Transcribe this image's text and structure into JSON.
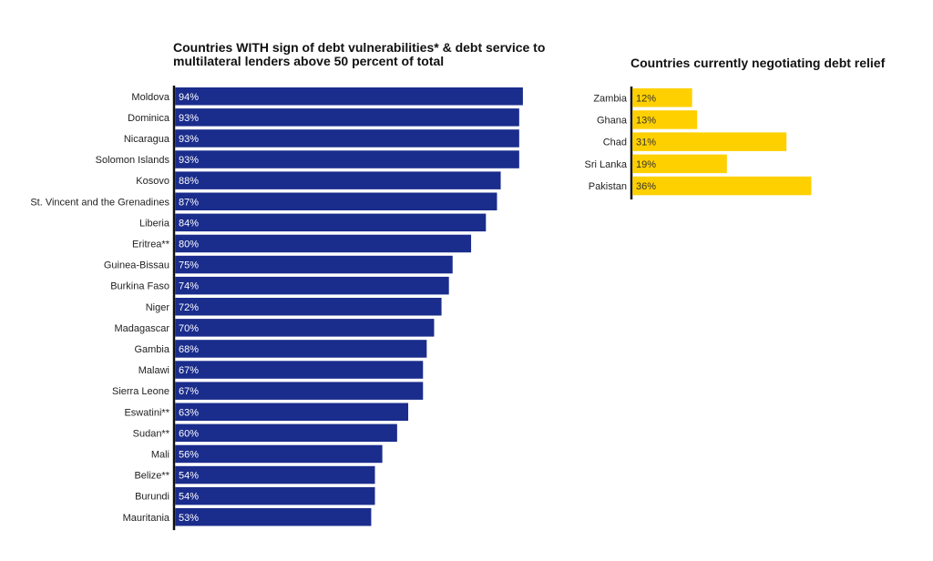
{
  "chart_data": [
    {
      "type": "bar",
      "orientation": "horizontal",
      "title": "Countries WITH sign of debt vulnerabilities* & debt service to multilateral lenders above 50 percent of total",
      "categories": [
        "Moldova",
        "Dominica",
        "Nicaragua",
        "Solomon Islands",
        "Kosovo",
        "St. Vincent and the Grenadines",
        "Liberia",
        "Eritrea**",
        "Guinea-Bissau",
        "Burkina Faso",
        "Niger",
        "Madagascar",
        "Gambia",
        "Malawi",
        "Sierra Leone",
        "Eswatini**",
        "Sudan**",
        "Mali",
        "Belize**",
        "Burundi",
        "Mauritania"
      ],
      "values": [
        94,
        93,
        93,
        93,
        88,
        87,
        84,
        80,
        75,
        74,
        72,
        70,
        68,
        67,
        67,
        63,
        60,
        56,
        54,
        54,
        53
      ],
      "data_labels": [
        "94%",
        "93%",
        "93%",
        "93%",
        "88%",
        "87%",
        "84%",
        "80%",
        "75%",
        "74%",
        "72%",
        "70%",
        "68%",
        "67%",
        "67%",
        "63%",
        "60%",
        "56%",
        "54%",
        "54%",
        "53%"
      ],
      "unit": "%",
      "bar_color": "#1a2c8c",
      "label_color": "#ffffff",
      "grid": false
    },
    {
      "type": "bar",
      "orientation": "horizontal",
      "title": "Countries currently negotiating debt relief",
      "categories": [
        "Zambia",
        "Ghana",
        "Chad",
        "Sri Lanka",
        "Pakistan"
      ],
      "values": [
        12,
        13,
        31,
        19,
        36
      ],
      "data_labels": [
        "12%",
        "13%",
        "31%",
        "19%",
        "36%"
      ],
      "unit": "%",
      "bar_color": "#ffd000",
      "label_color": "#333333",
      "grid": false
    }
  ]
}
